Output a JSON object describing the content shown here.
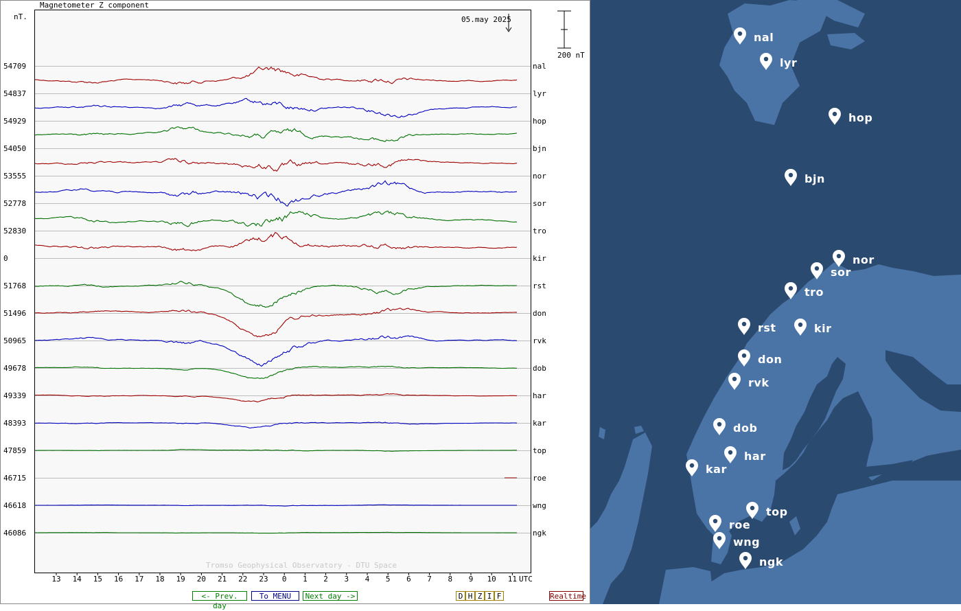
{
  "chart_data": {
    "type": "line",
    "title": "Magnetometer Z component",
    "ylabel": "nT.",
    "scale_label": "200 nT",
    "date_label": "05.may 2025",
    "x_unit_label": "UTC",
    "x_ticks": [
      "13",
      "14",
      "15",
      "16",
      "17",
      "18",
      "19",
      "20",
      "21",
      "22",
      "23",
      "0",
      "1",
      "2",
      "3",
      "4",
      "5",
      "6",
      "7",
      "8",
      "9",
      "10",
      "11"
    ],
    "watermark": "Tromso Geophysical Observatory - DTU Space",
    "series": [
      {
        "name": "nal",
        "baseline": "54709",
        "color": "#a00000",
        "disturbance": 1.0,
        "has_data": true
      },
      {
        "name": "lyr",
        "baseline": "54837",
        "color": "#0000c0",
        "disturbance": 1.0,
        "has_data": true
      },
      {
        "name": "hop",
        "baseline": "54929",
        "color": "#007000",
        "disturbance": 1.0,
        "has_data": true
      },
      {
        "name": "bjn",
        "baseline": "54050",
        "color": "#a00000",
        "disturbance": 1.1,
        "has_data": true
      },
      {
        "name": "nor",
        "baseline": "53555",
        "color": "#0000c0",
        "disturbance": 1.2,
        "has_data": true
      },
      {
        "name": "sor",
        "baseline": "52778",
        "color": "#007000",
        "disturbance": 1.2,
        "has_data": true
      },
      {
        "name": "tro",
        "baseline": "52830",
        "color": "#a00000",
        "disturbance": 1.1,
        "has_data": true
      },
      {
        "name": "kir",
        "baseline": "0",
        "color": "#0000c0",
        "disturbance": 0,
        "has_data": false
      },
      {
        "name": "rst",
        "baseline": "51768",
        "color": "#007000",
        "disturbance": 0.8,
        "has_data": true
      },
      {
        "name": "don",
        "baseline": "51496",
        "color": "#a00000",
        "disturbance": 0.8,
        "has_data": true
      },
      {
        "name": "rvk",
        "baseline": "50965",
        "color": "#0000c0",
        "disturbance": 0.8,
        "has_data": true
      },
      {
        "name": "dob",
        "baseline": "49678",
        "color": "#007000",
        "disturbance": 0.35,
        "has_data": true
      },
      {
        "name": "har",
        "baseline": "49339",
        "color": "#a00000",
        "disturbance": 0.3,
        "has_data": true
      },
      {
        "name": "kar",
        "baseline": "48393",
        "color": "#0000c0",
        "disturbance": 0.3,
        "has_data": true
      },
      {
        "name": "top",
        "baseline": "47859",
        "color": "#007000",
        "disturbance": 0.12,
        "has_data": true
      },
      {
        "name": "roe",
        "baseline": "46715",
        "color": "#a00000",
        "disturbance": 0,
        "has_data": true,
        "partial": true
      },
      {
        "name": "wng",
        "baseline": "46618",
        "color": "#0000c0",
        "disturbance": 0.08,
        "has_data": true
      },
      {
        "name": "ngk",
        "baseline": "46086",
        "color": "#007000",
        "disturbance": 0.06,
        "has_data": true
      }
    ]
  },
  "nav": {
    "prev_label": "<- Prev. day",
    "menu_label": "To MENU",
    "next_label": "Next day ->",
    "components": [
      "D",
      "H",
      "Z",
      "I",
      "F"
    ],
    "realtime_label": "Realtime"
  },
  "map": {
    "stations": [
      "nal",
      "lyr",
      "hop",
      "bjn",
      "nor",
      "sor",
      "tro",
      "rst",
      "kir",
      "don",
      "rvk",
      "dob",
      "har",
      "kar",
      "top",
      "roe",
      "wng",
      "ngk"
    ]
  }
}
